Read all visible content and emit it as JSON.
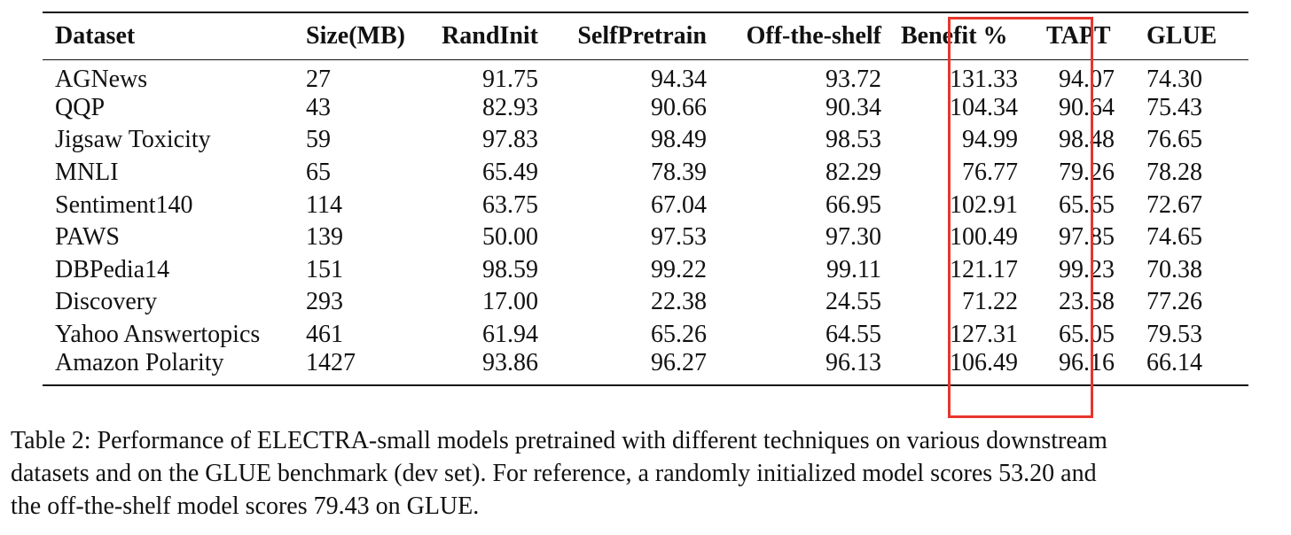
{
  "table": {
    "columns": [
      "Dataset",
      "Size(MB)",
      "RandInit",
      "SelfPretrain",
      "Off-the-shelf",
      "Benefit %",
      "TAPT",
      "GLUE"
    ],
    "rows": [
      [
        "AGNews",
        "27",
        "91.75",
        "94.34",
        "93.72",
        "131.33",
        "94.07",
        "74.30"
      ],
      [
        "QQP",
        "43",
        "82.93",
        "90.66",
        "90.34",
        "104.34",
        "90.64",
        "75.43"
      ],
      [
        "Jigsaw Toxicity",
        "59",
        "97.83",
        "98.49",
        "98.53",
        "94.99",
        "98.48",
        "76.65"
      ],
      [
        "MNLI",
        "65",
        "65.49",
        "78.39",
        "82.29",
        "76.77",
        "79.26",
        "78.28"
      ],
      [
        "Sentiment140",
        "114",
        "63.75",
        "67.04",
        "66.95",
        "102.91",
        "65.65",
        "72.67"
      ],
      [
        "PAWS",
        "139",
        "50.00",
        "97.53",
        "97.30",
        "100.49",
        "97.85",
        "74.65"
      ],
      [
        "DBPedia14",
        "151",
        "98.59",
        "99.22",
        "99.11",
        "121.17",
        "99.23",
        "70.38"
      ],
      [
        "Discovery",
        "293",
        "17.00",
        "22.38",
        "24.55",
        "71.22",
        "23.58",
        "77.26"
      ],
      [
        "Yahoo Answertopics",
        "461",
        "61.94",
        "65.26",
        "64.55",
        "127.31",
        "65.05",
        "79.53"
      ],
      [
        "Amazon Polarity",
        "1427",
        "93.86",
        "96.27",
        "96.13",
        "106.49",
        "96.16",
        "66.14"
      ]
    ],
    "highlighted_column": "Benefit %",
    "highlight_color": "#e8362d"
  },
  "caption": {
    "line1": "Table 2: Performance of ELECTRA-small models pretrained with different techniques on various downstream",
    "line2": "datasets and on the GLUE benchmark (dev set). For reference, a randomly initialized model scores 53.20 and",
    "line3": "the off-the-shelf model scores 79.43 on GLUE."
  }
}
